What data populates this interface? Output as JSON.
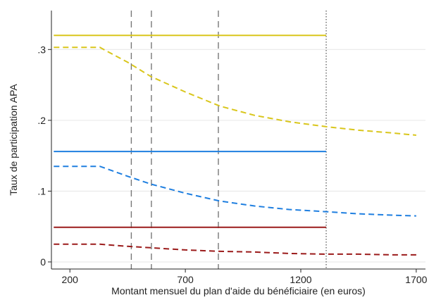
{
  "chart_data": {
    "type": "line",
    "title": "",
    "xlabel": "Montant mensuel du plan d'aide du bénéficiaire (en euros)",
    "ylabel": "Taux de participation APA",
    "xlim": [
      120,
      1740
    ],
    "ylim": [
      -0.01,
      0.355
    ],
    "x_ticks": [
      200,
      700,
      1200,
      1700
    ],
    "x_tick_labels": [
      "200",
      "700",
      "1200",
      "1700"
    ],
    "y_ticks": [
      0,
      0.1,
      0.2,
      0.3
    ],
    "y_tick_labels": [
      "0",
      ".1",
      ".2",
      ".3"
    ],
    "grid": "horizontal",
    "vertical_reference_lines": [
      {
        "x": 466,
        "style": "dashed"
      },
      {
        "x": 553,
        "style": "dashed"
      },
      {
        "x": 843,
        "style": "dashed"
      },
      {
        "x": 1310,
        "style": "dotted"
      }
    ],
    "series": [
      {
        "color": "#d9c61c",
        "style": "solid",
        "x": [
          130,
          1310
        ],
        "y": [
          0.32,
          0.32
        ]
      },
      {
        "color": "#d9c61c",
        "style": "dashed",
        "x": [
          130,
          330,
          450,
          550,
          700,
          850,
          1000,
          1150,
          1310,
          1450,
          1600,
          1700
        ],
        "y": [
          0.303,
          0.303,
          0.282,
          0.262,
          0.24,
          0.22,
          0.207,
          0.198,
          0.191,
          0.186,
          0.182,
          0.179
        ]
      },
      {
        "color": "#1f7fe0",
        "style": "solid",
        "x": [
          130,
          1310
        ],
        "y": [
          0.156,
          0.156
        ]
      },
      {
        "color": "#1f7fe0",
        "style": "dashed",
        "x": [
          130,
          330,
          450,
          550,
          700,
          850,
          1000,
          1150,
          1310,
          1450,
          1600,
          1700
        ],
        "y": [
          0.135,
          0.135,
          0.121,
          0.11,
          0.097,
          0.086,
          0.079,
          0.074,
          0.071,
          0.068,
          0.066,
          0.065
        ]
      },
      {
        "color": "#9b1b1b",
        "style": "solid",
        "x": [
          130,
          1310
        ],
        "y": [
          0.049,
          0.049
        ]
      },
      {
        "color": "#9b1b1b",
        "style": "dashed",
        "x": [
          130,
          330,
          450,
          550,
          700,
          850,
          1000,
          1150,
          1310,
          1450,
          1600,
          1700
        ],
        "y": [
          0.025,
          0.025,
          0.022,
          0.02,
          0.017,
          0.015,
          0.014,
          0.012,
          0.011,
          0.011,
          0.01,
          0.01
        ]
      }
    ]
  }
}
